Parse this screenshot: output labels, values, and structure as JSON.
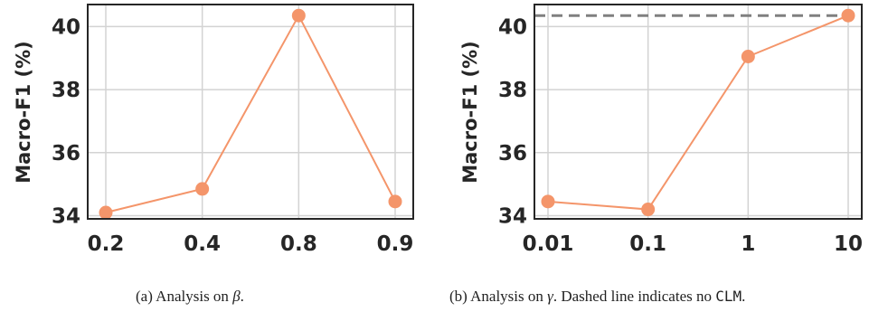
{
  "chart_data": [
    {
      "type": "line",
      "x_scale": "categorical",
      "categories": [
        "0.2",
        "0.4",
        "0.8",
        "0.9"
      ],
      "series": [
        {
          "values": [
            34.1,
            34.85,
            40.35,
            34.45
          ],
          "color": "#F4956A"
        }
      ],
      "xlabel": "",
      "ylabel": "Macro-F1 (%)",
      "yticks": [
        "34",
        "36",
        "38",
        "40"
      ],
      "ylim": [
        33.9,
        40.7
      ],
      "grid": true,
      "caption": {
        "prefix": "(a) Analysis on ",
        "symbol": "β",
        "suffix": "."
      }
    },
    {
      "type": "line",
      "x_scale": "log",
      "categories": [
        "0.01",
        "0.1",
        "1",
        "10"
      ],
      "series": [
        {
          "values": [
            34.45,
            34.2,
            39.05,
            40.35
          ],
          "color": "#F4956A"
        }
      ],
      "reference_line": {
        "y": 40.35,
        "style": "dashed",
        "color": "#808080"
      },
      "xlabel": "",
      "ylabel": "Macro-F1 (%)",
      "yticks": [
        "34",
        "36",
        "38",
        "40"
      ],
      "ylim": [
        33.9,
        40.7
      ],
      "grid": true,
      "caption": {
        "prefix": "(b) Analysis on ",
        "symbol": "γ",
        "middle": ". Dashed line indicates no ",
        "code": "CLM",
        "suffix": "."
      }
    }
  ]
}
